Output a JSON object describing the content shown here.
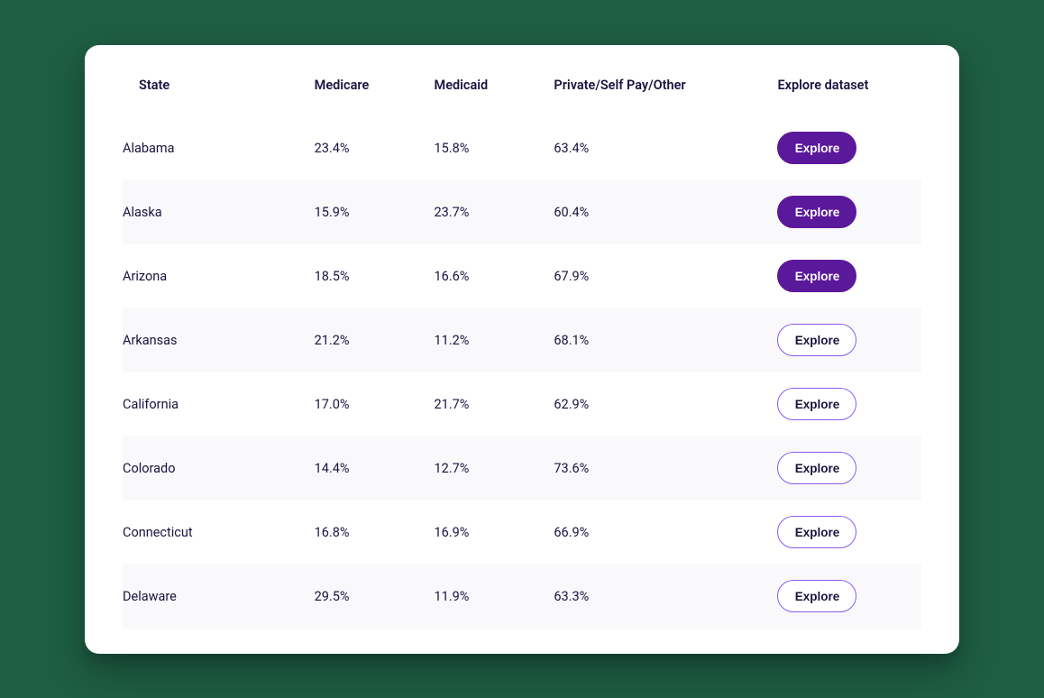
{
  "table": {
    "columns": [
      "State",
      "Medicare",
      "Medicaid",
      "Private/Self Pay/Other",
      "Explore dataset"
    ],
    "rows": [
      {
        "state": "Alabama",
        "medicare": "23.4%",
        "medicaid": "15.8%",
        "private": "63.4%",
        "button_label": "Explore",
        "button_style": "filled"
      },
      {
        "state": "Alaska",
        "medicare": "15.9%",
        "medicaid": "23.7%",
        "private": "60.4%",
        "button_label": "Explore",
        "button_style": "filled"
      },
      {
        "state": "Arizona",
        "medicare": "18.5%",
        "medicaid": "16.6%",
        "private": "67.9%",
        "button_label": "Explore",
        "button_style": "filled"
      },
      {
        "state": "Arkansas",
        "medicare": "21.2%",
        "medicaid": "11.2%",
        "private": "68.1%",
        "button_label": "Explore",
        "button_style": "outline"
      },
      {
        "state": "California",
        "medicare": "17.0%",
        "medicaid": "21.7%",
        "private": "62.9%",
        "button_label": "Explore",
        "button_style": "outline"
      },
      {
        "state": "Colorado",
        "medicare": "14.4%",
        "medicaid": "12.7%",
        "private": "73.6%",
        "button_label": "Explore",
        "button_style": "outline"
      },
      {
        "state": "Connecticut",
        "medicare": "16.8%",
        "medicaid": "16.9%",
        "private": "66.9%",
        "button_label": "Explore",
        "button_style": "outline"
      },
      {
        "state": "Delaware",
        "medicare": "29.5%",
        "medicaid": "11.9%",
        "private": "63.3%",
        "button_label": "Explore",
        "button_style": "outline"
      }
    ],
    "colors": {
      "page_background": "#1e5e43",
      "card_background": "#ffffff",
      "text": "#1a1440",
      "row_alt_background": "#f9f9fb",
      "button_filled_bg": "#5a189a",
      "button_filled_text": "#ffffff",
      "button_outline_border": "#8b5cf6",
      "button_outline_text": "#1a1440"
    }
  }
}
